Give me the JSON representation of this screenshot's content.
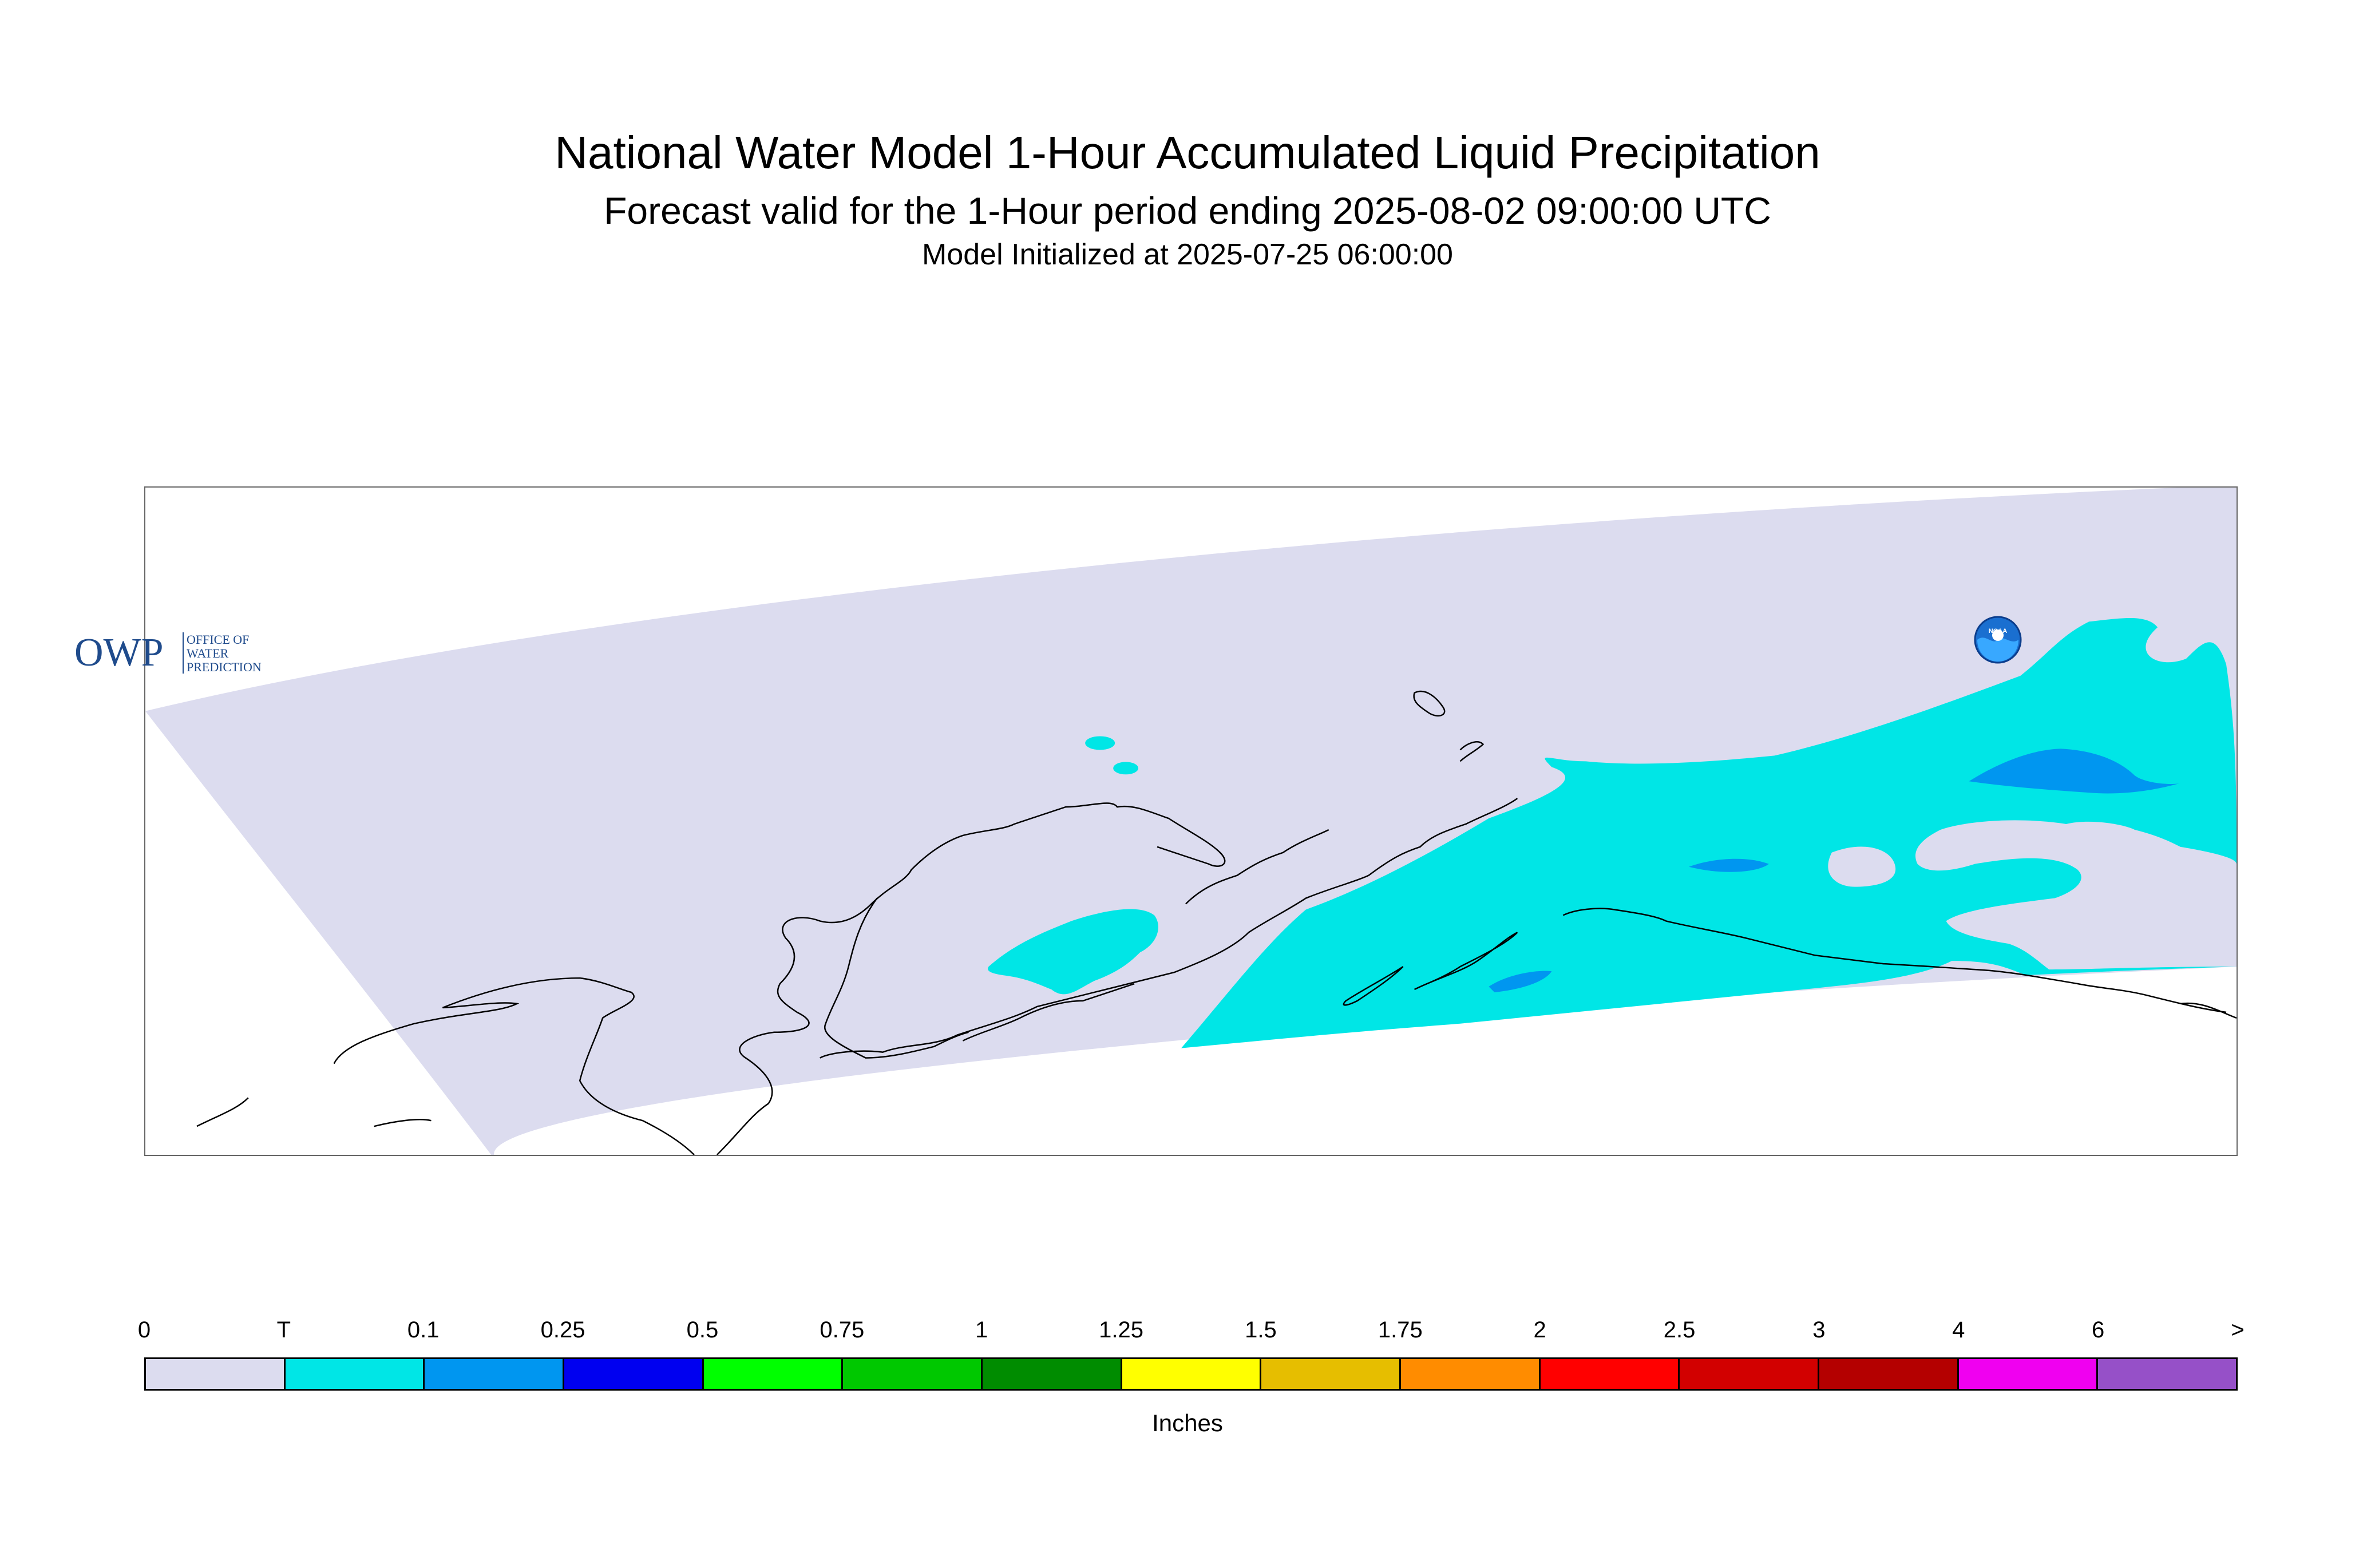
{
  "title": "National Water Model 1-Hour Accumulated Liquid Precipitation",
  "subtitle": "Forecast valid for the 1-Hour period ending 2025-08-02 09:00:00 UTC",
  "init": "Model Initialized at 2025-07-25 06:00:00",
  "logos": {
    "owp_letters": "OWP",
    "owp_line1": "OFFICE OF",
    "owp_line2": "WATER",
    "owp_line3": "PREDICTION",
    "noaa": "NOAA"
  },
  "legend": {
    "units": "Inches",
    "ticks": [
      "0",
      "T",
      "0.1",
      "0.25",
      "0.5",
      "0.75",
      "1",
      "1.25",
      "1.5",
      "1.75",
      "2",
      "2.5",
      "3",
      "4",
      "6",
      ">"
    ],
    "colors": [
      "#dcdcef",
      "#00e6e6",
      "#0096f0",
      "#0000f0",
      "#00ff00",
      "#00c800",
      "#008c00",
      "#ffff00",
      "#e6be00",
      "#ff8c00",
      "#ff0000",
      "#d20000",
      "#b40000",
      "#f000f0",
      "#9650c8"
    ]
  },
  "colors": {
    "domain": "#dcdcef",
    "trace": "#00e6e6",
    "light": "#0096f0",
    "coast": "#000000"
  }
}
